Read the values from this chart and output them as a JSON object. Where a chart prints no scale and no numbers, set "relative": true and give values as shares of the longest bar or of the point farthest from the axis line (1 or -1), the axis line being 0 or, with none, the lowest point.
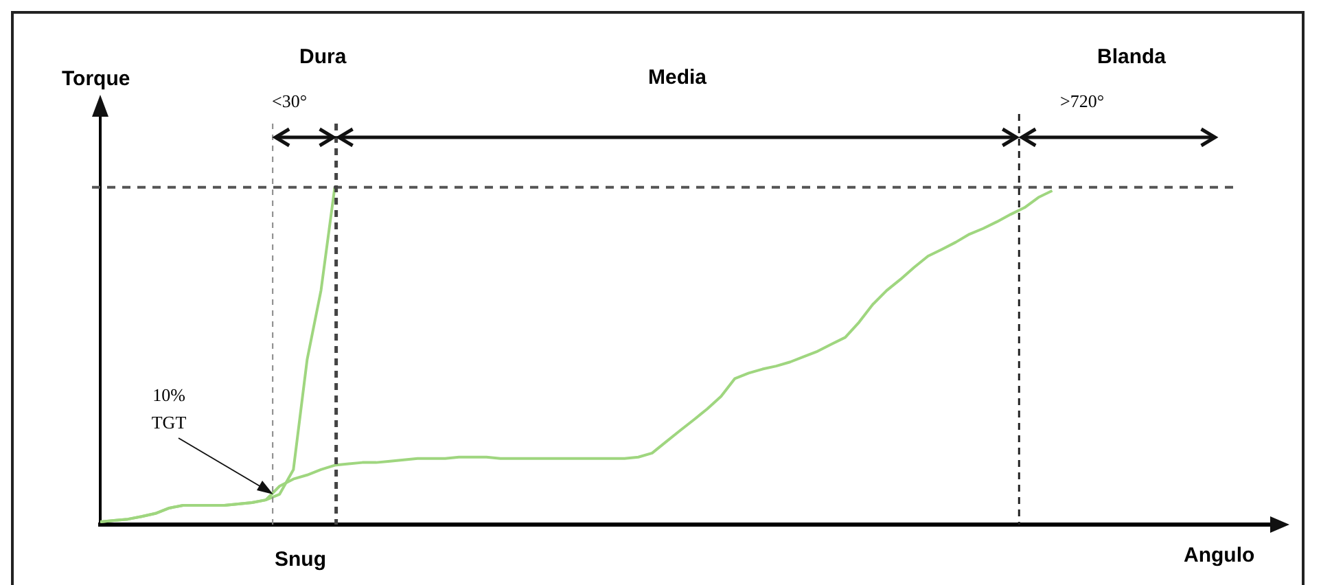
{
  "chart_data": {
    "type": "line",
    "relative": true,
    "xlabel": "Angulo",
    "ylabel": "Torque",
    "categories": [
      null,
      null,
      null,
      null,
      null,
      null,
      null,
      null,
      null,
      null,
      null,
      null,
      null,
      null,
      null,
      null,
      null,
      null,
      null,
      null,
      null,
      null,
      null,
      null,
      null,
      null,
      null,
      null,
      null,
      null,
      null,
      null,
      null,
      null,
      null,
      null,
      null,
      null,
      null,
      null,
      null,
      null,
      null,
      null,
      null,
      null,
      null,
      null,
      null,
      null,
      null,
      null,
      null,
      null,
      null,
      null,
      null,
      null,
      null,
      null,
      null,
      null,
      null,
      null,
      null,
      null,
      null,
      null,
      null,
      null,
      null,
      null,
      null,
      null,
      null,
      null,
      null,
      null,
      null,
      null,
      null,
      null,
      null,
      null,
      null,
      null
    ],
    "series": [
      {
        "color": "#9fd67f",
        "values": [
          0.008,
          0.012,
          0.016,
          0.024,
          0.033,
          0.049,
          0.057,
          0.057,
          0.057,
          0.057,
          0.061,
          0.065,
          0.073,
          0.09,
          0.163,
          0.49,
          0.694,
          1,
          null,
          null,
          null,
          null,
          null,
          null,
          null,
          null,
          null,
          null,
          null,
          null,
          null,
          null,
          null,
          null,
          null,
          null,
          null,
          null,
          null,
          null,
          null,
          null,
          null,
          null,
          null,
          null,
          null,
          null,
          null,
          null,
          null,
          null,
          null,
          null,
          null,
          null,
          null,
          null,
          null,
          null,
          null,
          null,
          null,
          null,
          null,
          null,
          null,
          null,
          null,
          null,
          null,
          null,
          null,
          null,
          null,
          null,
          null,
          null,
          null,
          null,
          null,
          null,
          null,
          null,
          null,
          null
        ]
      },
      {
        "color": "#9fd67f",
        "values": [
          0.008,
          0.012,
          0.016,
          0.024,
          0.033,
          0.049,
          0.057,
          0.057,
          0.057,
          0.057,
          0.061,
          0.065,
          0.073,
          0.114,
          0.135,
          0.147,
          0.163,
          0.176,
          0.18,
          0.184,
          0.184,
          0.188,
          0.192,
          0.196,
          0.196,
          0.196,
          0.2,
          0.2,
          0.2,
          0.196,
          0.196,
          0.196,
          0.196,
          0.196,
          0.196,
          0.196,
          0.196,
          0.196,
          0.196,
          0.2,
          0.212,
          0.245,
          0.278,
          0.31,
          0.343,
          0.38,
          0.433,
          0.449,
          0.461,
          0.47,
          0.482,
          0.498,
          0.514,
          0.535,
          0.555,
          0.6,
          0.653,
          0.694,
          0.727,
          0.763,
          0.796,
          0.816,
          0.837,
          0.861,
          0.878,
          0.898,
          0.92,
          0.94,
          0.97,
          0.99,
          null,
          null,
          null,
          null,
          null,
          null,
          null,
          null,
          null,
          null,
          null,
          null,
          null,
          null,
          null,
          null
        ]
      }
    ],
    "ref_lines": [
      {
        "axis": "y",
        "value": 1,
        "color": "#555555",
        "line_style": "dashed"
      }
    ],
    "annotations": [
      "Dura",
      "<30°",
      "Media",
      "Blanda",
      ">720°",
      "10% TGT",
      "Snug"
    ],
    "grid": false,
    "legend": false,
    "tick_labels": false,
    "marker": "none",
    "line_style": "solid"
  }
}
